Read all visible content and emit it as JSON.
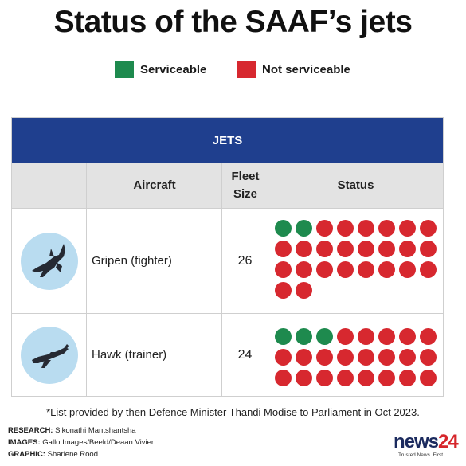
{
  "title": "Status of the SAAF’s jets",
  "legend": [
    {
      "label": "Serviceable",
      "color": "#1e8a4e"
    },
    {
      "label": "Not serviceable",
      "color": "#d7282f"
    }
  ],
  "table": {
    "header": "JETS",
    "columns": [
      "Aircraft",
      "Fleet\nSize",
      "Status"
    ],
    "rows": [
      {
        "name": "Gripen (fighter)",
        "fleet_size": "26",
        "serviceable": 2,
        "total": 26,
        "icon": "fighter-jet-icon"
      },
      {
        "name": "Hawk (trainer)",
        "fleet_size": "24",
        "serviceable": 3,
        "total": 24,
        "icon": "trainer-jet-icon"
      }
    ]
  },
  "footnote": "*List provided by then Defence Minister Thandi Modise to Parliament in Oct 2023.",
  "credits": {
    "research_label": "RESEARCH:",
    "research": "Sikonathi Mantshantsha",
    "images_label": "IMAGES:",
    "images": "Gallo Images/Beeld/Deaan Vivier",
    "graphic_label": "GRAPHIC:",
    "graphic": "Sharlene Rood"
  },
  "logo": {
    "word": "news",
    "number": "24",
    "tagline": "Trusted News. First"
  }
}
